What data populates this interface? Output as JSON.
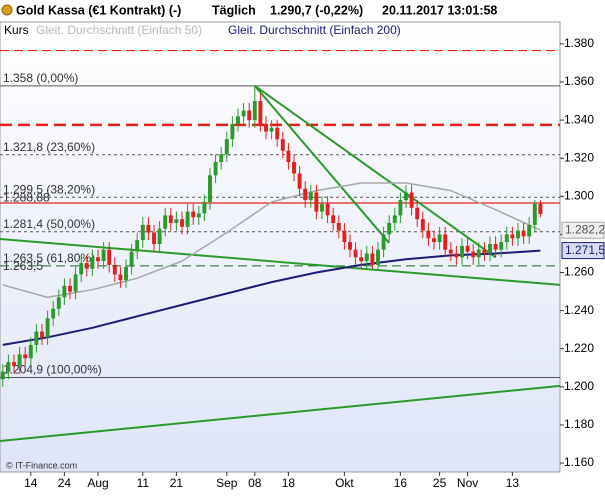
{
  "chart_data": {
    "type": "candlestick",
    "title": "Gold Kassa (€1 Kontrakt) (-)",
    "interval": "Täglich",
    "last_price": "1.290,7 (-0,22%)",
    "timestamp": "20.11.2017 13:01:58",
    "legend_label": "Kurs",
    "copyright": "© IT-Finance.com",
    "grid": false,
    "up_color": "#2b9a2b",
    "down_color": "#e3201e",
    "categories": [
      null,
      null,
      null,
      null,
      null,
      "14",
      null,
      null,
      null,
      null,
      null,
      "24",
      null,
      null,
      null,
      null,
      null,
      "Aug",
      null,
      null,
      null,
      null,
      null,
      null,
      null,
      "11",
      null,
      null,
      null,
      null,
      null,
      "21",
      null,
      null,
      null,
      null,
      null,
      null,
      null,
      null,
      "Sep",
      null,
      null,
      null,
      null,
      "08",
      null,
      null,
      null,
      null,
      null,
      "18",
      null,
      null,
      null,
      null,
      null,
      null,
      null,
      null,
      null,
      "Okt",
      null,
      null,
      null,
      null,
      null,
      null,
      null,
      null,
      null,
      "16",
      null,
      null,
      null,
      null,
      null,
      null,
      "25",
      null,
      null,
      null,
      null,
      "Nov",
      null,
      null,
      null,
      null,
      null,
      null,
      null,
      "13",
      null,
      null,
      null,
      null,
      null
    ],
    "open": [
      1204,
      1208,
      1213,
      1211,
      1217,
      1215,
      1222,
      1229,
      1226,
      1236,
      1241,
      1247,
      1253,
      1250,
      1259,
      1265,
      1262,
      1268,
      1266,
      1272,
      1264,
      1259,
      1256,
      1263,
      1271,
      1277,
      1285,
      1281,
      1275,
      1283,
      1290,
      1286,
      1288,
      1284,
      1292,
      1289,
      1291,
      1297,
      1311,
      1318,
      1322,
      1330,
      1338,
      1342,
      1345,
      1340,
      1350,
      1338,
      1334,
      1336,
      1330,
      1324,
      1318,
      1312,
      1304,
      1298,
      1302,
      1292,
      1296,
      1290,
      1286,
      1282,
      1276,
      1272,
      1268,
      1266,
      1270,
      1264,
      1272,
      1280,
      1286,
      1290,
      1298,
      1302,
      1294,
      1288,
      1282,
      1278,
      1276,
      1280,
      1272,
      1270,
      1268,
      1274,
      1271,
      1268,
      1272,
      1270,
      1275,
      1272,
      1276,
      1280,
      1278,
      1282,
      1279,
      1285,
      1296
    ],
    "high": [
      1212,
      1217,
      1217,
      1221,
      1221,
      1226,
      1233,
      1233,
      1240,
      1245,
      1251,
      1257,
      1257,
      1263,
      1269,
      1269,
      1272,
      1272,
      1276,
      1276,
      1268,
      1263,
      1267,
      1275,
      1281,
      1289,
      1289,
      1285,
      1287,
      1294,
      1294,
      1292,
      1292,
      1296,
      1296,
      1295,
      1301,
      1315,
      1322,
      1326,
      1334,
      1342,
      1346,
      1349,
      1349,
      1358,
      1354,
      1342,
      1340,
      1340,
      1334,
      1328,
      1322,
      1316,
      1308,
      1306,
      1306,
      1300,
      1300,
      1294,
      1290,
      1286,
      1280,
      1276,
      1272,
      1274,
      1274,
      1276,
      1284,
      1290,
      1294,
      1302,
      1306,
      1306,
      1298,
      1292,
      1286,
      1282,
      1284,
      1284,
      1276,
      1274,
      1278,
      1278,
      1275,
      1276,
      1276,
      1279,
      1279,
      1280,
      1284,
      1284,
      1286,
      1286,
      1289,
      1298,
      1298
    ],
    "low": [
      1200,
      1204,
      1207,
      1207,
      1211,
      1211,
      1218,
      1222,
      1222,
      1232,
      1237,
      1243,
      1246,
      1246,
      1255,
      1258,
      1258,
      1262,
      1262,
      1260,
      1255,
      1252,
      1252,
      1259,
      1267,
      1273,
      1277,
      1271,
      1271,
      1279,
      1282,
      1282,
      1280,
      1280,
      1285,
      1285,
      1287,
      1293,
      1307,
      1314,
      1318,
      1326,
      1334,
      1338,
      1336,
      1336,
      1334,
      1330,
      1330,
      1326,
      1320,
      1314,
      1308,
      1300,
      1294,
      1294,
      1288,
      1288,
      1286,
      1282,
      1278,
      1272,
      1268,
      1264,
      1262,
      1262,
      1262,
      1262,
      1268,
      1276,
      1282,
      1286,
      1294,
      1290,
      1284,
      1278,
      1274,
      1272,
      1272,
      1268,
      1266,
      1264,
      1264,
      1267,
      1264,
      1264,
      1266,
      1266,
      1268,
      1268,
      1272,
      1274,
      1274,
      1275,
      1275,
      1281,
      1289
    ],
    "close": [
      1208,
      1213,
      1211,
      1217,
      1215,
      1222,
      1229,
      1226,
      1236,
      1241,
      1247,
      1253,
      1250,
      1259,
      1265,
      1262,
      1268,
      1266,
      1272,
      1264,
      1259,
      1256,
      1263,
      1271,
      1277,
      1285,
      1281,
      1275,
      1283,
      1290,
      1286,
      1288,
      1284,
      1292,
      1289,
      1291,
      1297,
      1311,
      1318,
      1322,
      1330,
      1338,
      1342,
      1345,
      1340,
      1350,
      1338,
      1334,
      1336,
      1330,
      1324,
      1318,
      1312,
      1304,
      1298,
      1302,
      1292,
      1296,
      1290,
      1286,
      1282,
      1276,
      1272,
      1268,
      1266,
      1270,
      1264,
      1272,
      1280,
      1286,
      1290,
      1298,
      1302,
      1294,
      1288,
      1282,
      1278,
      1276,
      1280,
      1272,
      1270,
      1268,
      1274,
      1271,
      1268,
      1272,
      1270,
      1275,
      1272,
      1276,
      1280,
      1278,
      1282,
      1279,
      1285,
      1296,
      1290.7
    ],
    "series": [
      {
        "name": "Gleit. Durchschnitt (Einfach 50)",
        "color": "#a8a8a8",
        "x": [
          0,
          8,
          16,
          24,
          32,
          40,
          48,
          56,
          64,
          72,
          80,
          88,
          96
        ],
        "values": [
          1253.5,
          1247,
          1251,
          1257,
          1266,
          1281,
          1297,
          1303,
          1307,
          1307,
          1303,
          1293,
          1282.2
        ],
        "end_label": "1.282,2"
      },
      {
        "name": "Gleit. Durchschnitt (Einfach 200)",
        "color": "#1b1b78",
        "x": [
          0,
          8,
          16,
          24,
          32,
          40,
          48,
          56,
          64,
          72,
          80,
          88,
          96
        ],
        "values": [
          1222,
          1226,
          1231,
          1237,
          1243,
          1249,
          1255,
          1260,
          1264,
          1267,
          1269,
          1270,
          1271.5
        ],
        "end_label": "1.271,5"
      }
    ],
    "ylim": [
      1155.3,
      1391.5
    ],
    "yticks": [
      {
        "value": 1160,
        "label": "1.160"
      },
      {
        "value": 1180,
        "label": "1.180"
      },
      {
        "value": 1200,
        "label": "1.200"
      },
      {
        "value": 1220,
        "label": "1.220"
      },
      {
        "value": 1240,
        "label": "1.240"
      },
      {
        "value": 1260,
        "label": "1.260"
      },
      {
        "value": 1280,
        "label": "1.280"
      },
      {
        "value": 1300,
        "label": "1.300"
      },
      {
        "value": 1320,
        "label": "1.320"
      },
      {
        "value": 1340,
        "label": "1.340"
      },
      {
        "value": 1360,
        "label": "1.360"
      },
      {
        "value": 1380,
        "label": "1.380"
      }
    ],
    "hlines": [
      {
        "value": 1376.5,
        "color": "#e3201e",
        "style": "dashed"
      },
      {
        "value": 1337.5,
        "color": "#e3201e",
        "style": "dashed-bold"
      },
      {
        "value": 1296.5,
        "color": "#e3201e",
        "style": "solid"
      }
    ],
    "fib_levels": [
      {
        "value": 1358,
        "label": "1.358 (0,00%)",
        "style": "solid",
        "color": "#555555"
      },
      {
        "value": 1321.8,
        "label": "1.321,8 (23,60%)",
        "style": "dotted",
        "color": "#555555"
      },
      {
        "value": 1299.5,
        "label": "1.299,5 (38,20%)",
        "style": "dotted",
        "color": "#555555"
      },
      {
        "value": 1281.4,
        "label": "1.281,4 (50,00%)",
        "style": "dotted",
        "color": "#555555"
      },
      {
        "value": 1263.5,
        "label": "1.263,5 (61,80%)",
        "style": "dashed",
        "color": "#1c6e1c"
      },
      {
        "value": 1204.9,
        "label": "1.204,9 (100,00%)",
        "style": "solid",
        "color": "#555555"
      }
    ],
    "annotations": [
      "1.288,88",
      "1.263,5"
    ],
    "trendlines": [
      {
        "color": "#2b9a2b",
        "x": [
          -0.5,
          99.5
        ],
        "y": [
          1277.6,
          1253.5
        ]
      },
      {
        "color": "#2b9a2b",
        "x": [
          -0.5,
          99.5
        ],
        "y": [
          1171.6,
          1200.5
        ]
      },
      {
        "color": "#2b9a2b",
        "x": [
          45,
          69
        ],
        "y": [
          1358,
          1275.5
        ]
      },
      {
        "color": "#2b9a2b",
        "x": [
          45,
          88
        ],
        "y": [
          1358,
          1268
        ]
      }
    ]
  }
}
